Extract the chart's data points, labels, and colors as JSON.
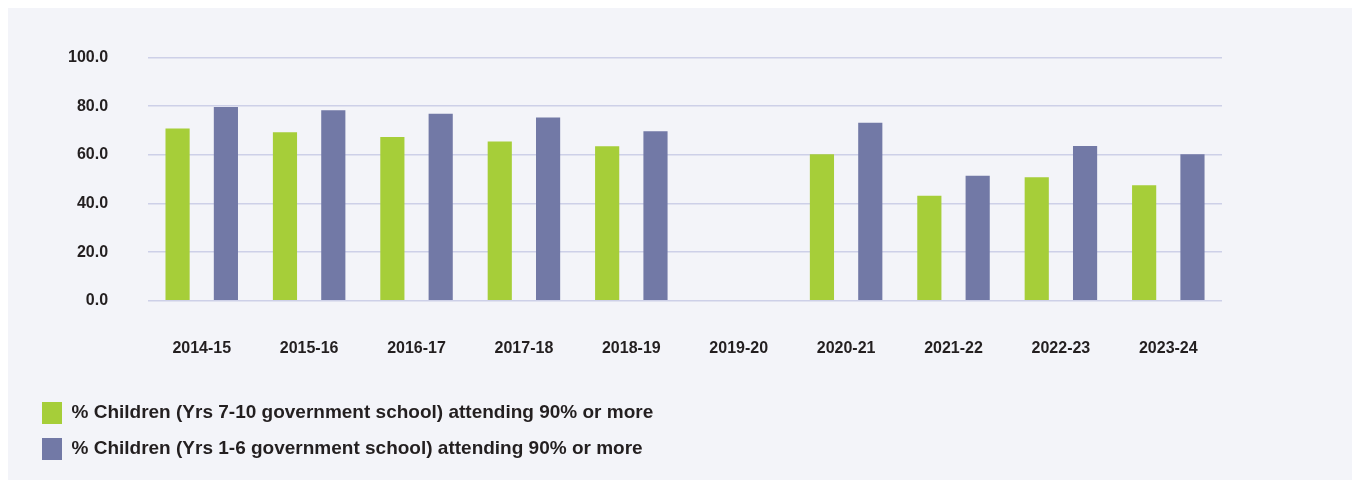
{
  "chart_data": {
    "type": "bar",
    "categories": [
      "2014-15",
      "2015-16",
      "2016-17",
      "2017-18",
      "2018-19",
      "2019-20",
      "2020-21",
      "2021-22",
      "2022-23",
      "2023-24"
    ],
    "series": [
      {
        "name": "% Children (Yrs 7-10 government school) attending 90% or more",
        "color": "#a6ce39",
        "values": [
          70.8,
          69.3,
          67.4,
          65.5,
          63.6,
          null,
          60.3,
          43.2,
          50.8,
          47.5
        ]
      },
      {
        "name": "% Children (Yrs 1-6 government school) attending 90% or more",
        "color": "#7279a6",
        "values": [
          79.7,
          78.4,
          76.9,
          75.4,
          69.7,
          null,
          73.2,
          51.4,
          63.7,
          60.3
        ]
      }
    ],
    "ylim": [
      0,
      100
    ],
    "yticks": [
      {
        "value": 0,
        "label": "0.0"
      },
      {
        "value": 20,
        "label": "20.0"
      },
      {
        "value": 40,
        "label": "40.0"
      },
      {
        "value": 60,
        "label": "60.0"
      },
      {
        "value": 80,
        "label": "80.0"
      },
      {
        "value": 100,
        "label": "100.0"
      }
    ],
    "grid": "y",
    "legend": "bottom"
  }
}
